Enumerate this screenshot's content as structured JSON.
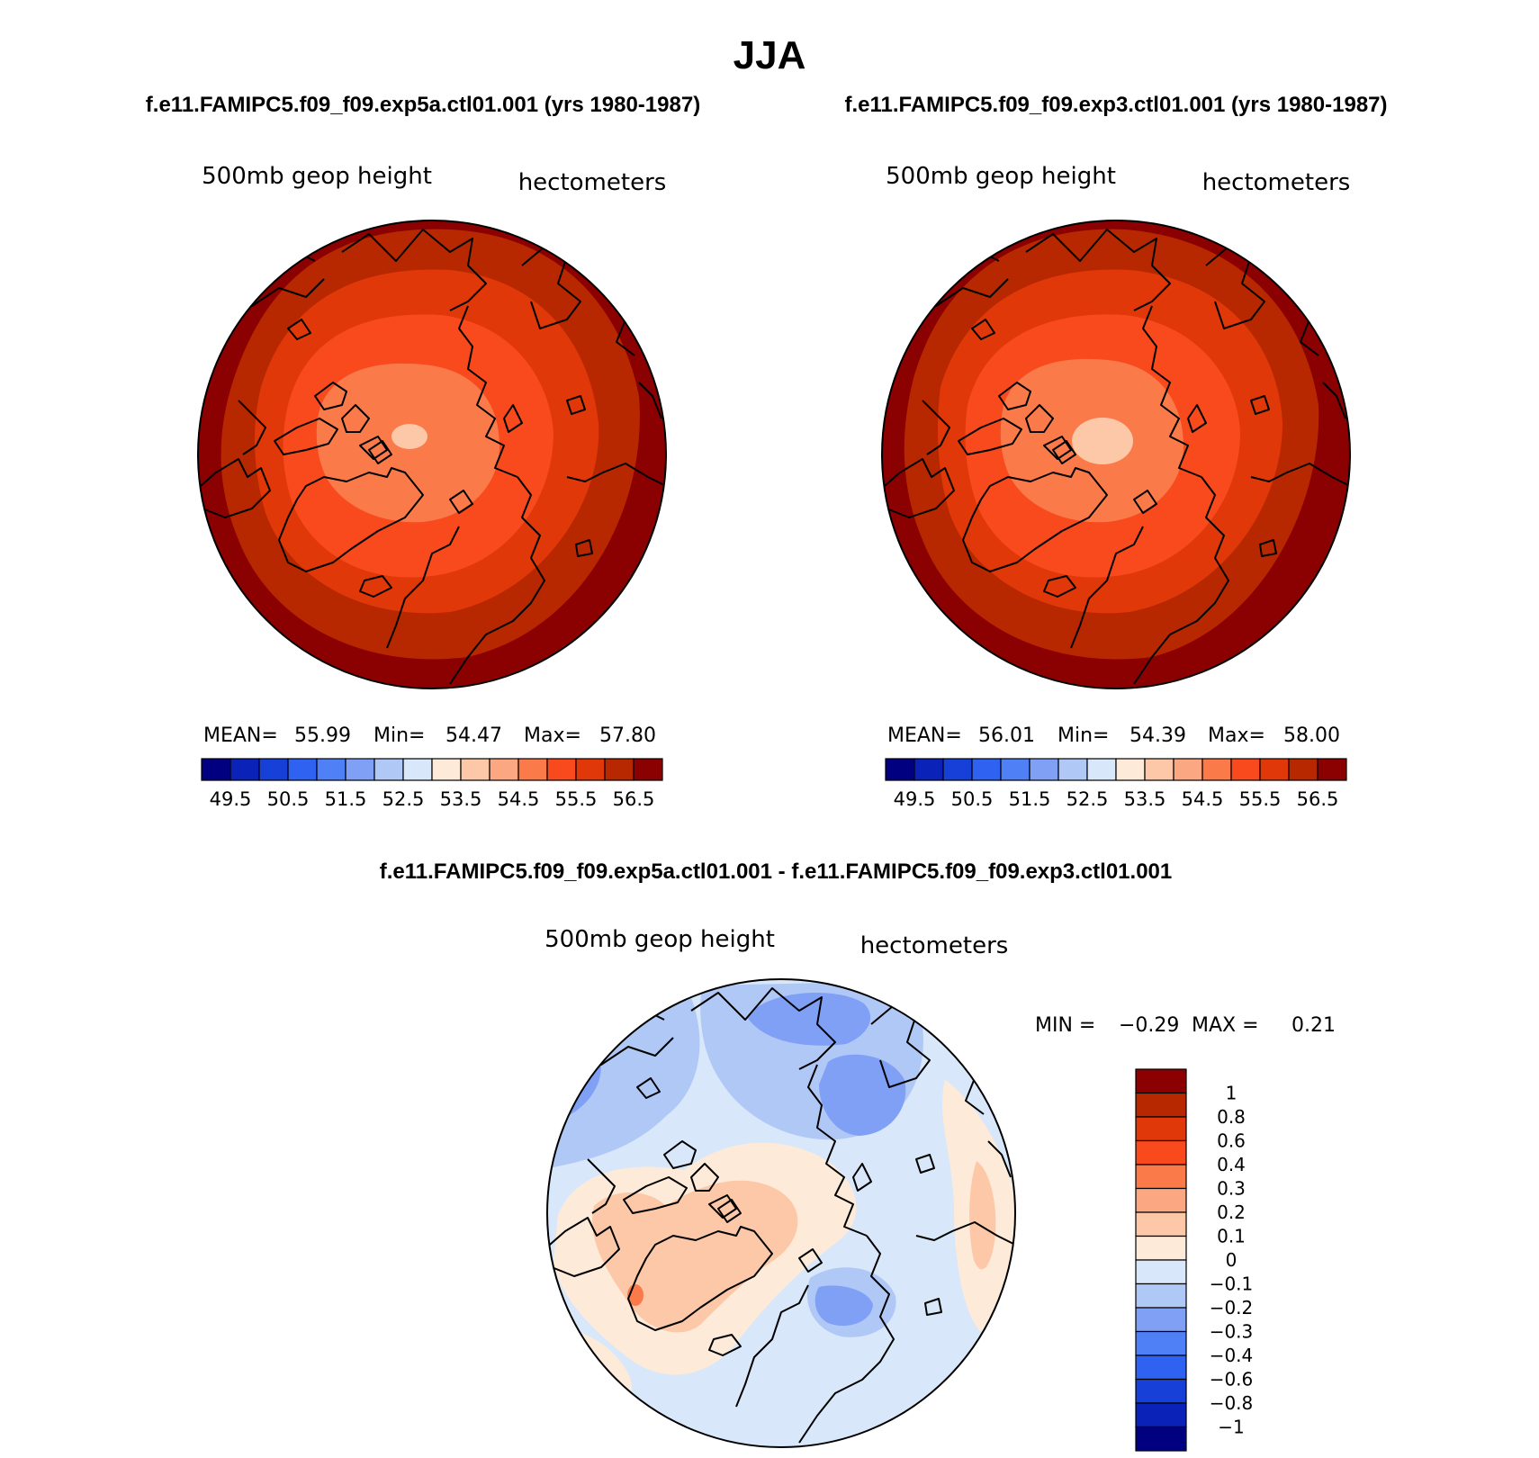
{
  "title": "JJA",
  "panels": {
    "left": {
      "case": "f.e11.FAMIPC5.f09_f09.exp5a.ctl01.001 (yrs 1980-1987)",
      "variable": "500mb geop height",
      "units": "hectometers",
      "mean_label": "MEAN=",
      "mean_value": "55.99",
      "min_label": "Min=",
      "min_value": "54.47",
      "max_label": "Max=",
      "max_value": "57.80"
    },
    "right": {
      "case": "f.e11.FAMIPC5.f09_f09.exp3.ctl01.001 (yrs 1980-1987)",
      "variable": "500mb geop height",
      "units": "hectometers",
      "mean_label": "MEAN=",
      "mean_value": "56.01",
      "min_label": "Min=",
      "min_value": "54.39",
      "max_label": "Max=",
      "max_value": "58.00"
    },
    "diff": {
      "case": "f.e11.FAMIPC5.f09_f09.exp5a.ctl01.001 - f.e11.FAMIPC5.f09_f09.exp3.ctl01.001",
      "variable": "500mb geop height",
      "units": "hectometers",
      "min_label": "MIN =",
      "min_value": "−0.29",
      "max_label": "MAX =",
      "max_value": "0.21"
    }
  },
  "colorbar_abs": {
    "colors": [
      "#000080",
      "#0a22b8",
      "#1740d8",
      "#2f62f0",
      "#4f80f5",
      "#7fa0f5",
      "#b0c8f5",
      "#d8e8fa",
      "#feead8",
      "#fcc8a8",
      "#fba882",
      "#fa7a4a",
      "#f84a1c",
      "#e03808",
      "#b82800",
      "#8b0000"
    ],
    "labels": [
      "49.5",
      "50.5",
      "51.5",
      "52.5",
      "53.5",
      "54.5",
      "55.5",
      "56.5"
    ]
  },
  "colorbar_diff": {
    "colors": [
      "#8b0000",
      "#b82800",
      "#e03808",
      "#f84a1c",
      "#fa7a4a",
      "#fba882",
      "#fcc8a8",
      "#feead8",
      "#d8e8fa",
      "#b0c8f5",
      "#7fa0f5",
      "#4f80f5",
      "#2f62f0",
      "#1740d8",
      "#0a22b8",
      "#000080"
    ],
    "labels": [
      "1",
      "0.8",
      "0.6",
      "0.4",
      "0.3",
      "0.2",
      "0.1",
      "0",
      "−0.1",
      "−0.2",
      "−0.3",
      "−0.4",
      "−0.6",
      "−0.8",
      "−1"
    ]
  }
}
